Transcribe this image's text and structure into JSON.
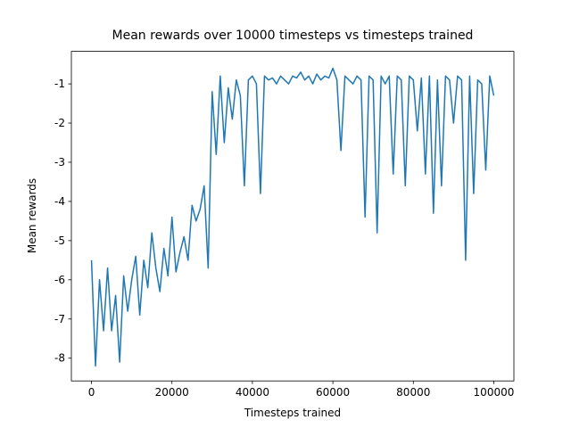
{
  "chart_data": {
    "type": "line",
    "title": "Mean rewards over 10000 timesteps vs timesteps trained",
    "x_label": "Timesteps trained",
    "y_label": "Mean rewards",
    "x": [
      0,
      1000,
      2000,
      3000,
      4000,
      5000,
      6000,
      7000,
      8000,
      9000,
      10000,
      11000,
      12000,
      13000,
      14000,
      15000,
      16000,
      17000,
      18000,
      19000,
      20000,
      21000,
      22000,
      23000,
      24000,
      25000,
      26000,
      27000,
      28000,
      29000,
      30000,
      31000,
      32000,
      33000,
      34000,
      35000,
      36000,
      37000,
      38000,
      39000,
      40000,
      41000,
      42000,
      43000,
      44000,
      45000,
      46000,
      47000,
      48000,
      49000,
      50000,
      51000,
      52000,
      53000,
      54000,
      55000,
      56000,
      57000,
      58000,
      59000,
      60000,
      61000,
      62000,
      63000,
      64000,
      65000,
      66000,
      67000,
      68000,
      69000,
      70000,
      71000,
      72000,
      73000,
      74000,
      75000,
      76000,
      77000,
      78000,
      79000,
      80000,
      81000,
      82000,
      83000,
      84000,
      85000,
      86000,
      87000,
      88000,
      89000,
      90000,
      91000,
      92000,
      93000,
      94000,
      95000,
      96000,
      97000,
      98000,
      99000,
      100000
    ],
    "series": [
      {
        "name": "Mean rewards",
        "color": "#1f77b4",
        "values": [
          -5.5,
          -8.2,
          -6.0,
          -7.3,
          -5.7,
          -7.3,
          -6.4,
          -8.1,
          -5.9,
          -6.8,
          -6.0,
          -5.4,
          -6.9,
          -5.5,
          -6.2,
          -4.8,
          -5.7,
          -6.3,
          -5.2,
          -5.9,
          -4.4,
          -5.8,
          -5.3,
          -4.9,
          -5.5,
          -4.1,
          -4.5,
          -4.2,
          -3.6,
          -5.7,
          -1.2,
          -2.8,
          -0.8,
          -2.5,
          -1.1,
          -1.9,
          -0.9,
          -1.3,
          -3.6,
          -0.9,
          -0.8,
          -1.0,
          -3.8,
          -0.8,
          -0.9,
          -0.85,
          -1.0,
          -0.8,
          -0.9,
          -1.0,
          -0.8,
          -0.85,
          -0.7,
          -0.9,
          -0.8,
          -1.0,
          -0.75,
          -0.9,
          -0.8,
          -0.85,
          -0.6,
          -0.9,
          -2.7,
          -0.8,
          -0.9,
          -1.0,
          -0.8,
          -0.9,
          -4.4,
          -0.8,
          -0.9,
          -4.8,
          -0.8,
          -1.0,
          -0.8,
          -3.3,
          -0.8,
          -0.9,
          -3.6,
          -0.8,
          -0.9,
          -2.2,
          -0.85,
          -3.3,
          -0.8,
          -4.3,
          -0.9,
          -3.6,
          -0.8,
          -0.9,
          -2.0,
          -0.8,
          -0.9,
          -5.5,
          -0.8,
          -3.8,
          -0.9,
          -1.0,
          -3.2,
          -0.8,
          -1.3
        ]
      }
    ],
    "xlim": [
      -5000,
      105000
    ],
    "ylim": [
      -8.58,
      -0.17
    ],
    "xticks": [
      0,
      20000,
      40000,
      60000,
      80000,
      100000
    ],
    "yticks": [
      -8,
      -7,
      -6,
      -5,
      -4,
      -3,
      -2,
      -1
    ]
  }
}
